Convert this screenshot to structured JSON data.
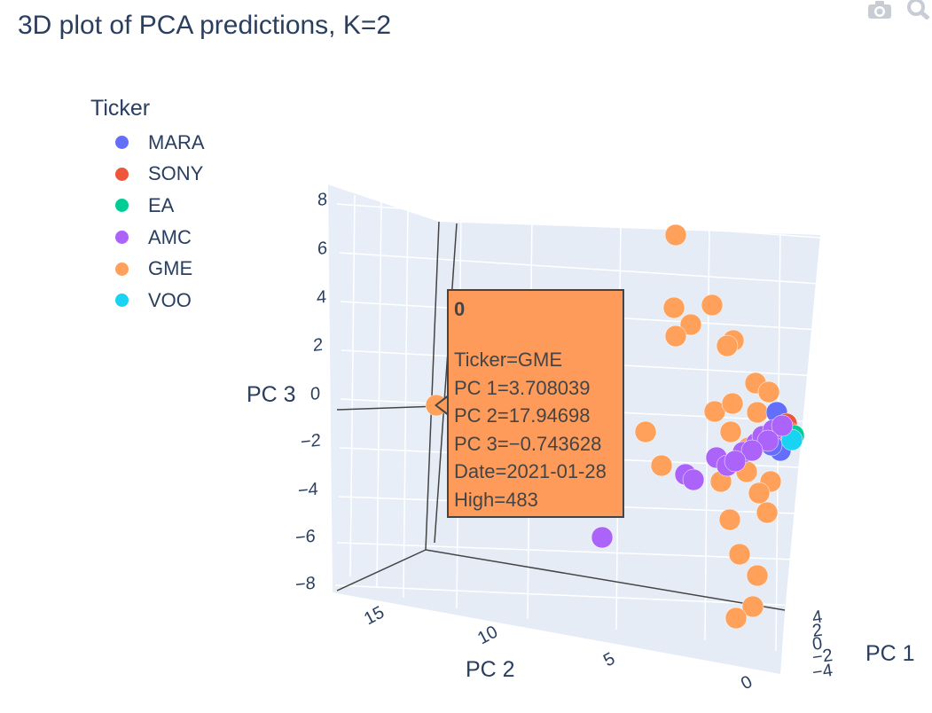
{
  "title": "3D plot of PCA predictions, K=2",
  "toolbar": {
    "icons": [
      "camera-icon",
      "zoom-icon"
    ]
  },
  "legend": {
    "title": "Ticker",
    "items": [
      {
        "label": "MARA",
        "color": "#636efa"
      },
      {
        "label": "SONY",
        "color": "#EF553B"
      },
      {
        "label": "EA",
        "color": "#00cc96"
      },
      {
        "label": "AMC",
        "color": "#ab63fa"
      },
      {
        "label": "GME",
        "color": "#FFA15A"
      },
      {
        "label": "VOO",
        "color": "#19d3f3"
      }
    ]
  },
  "hover": {
    "title": "0",
    "lines": [
      "Ticker=GME",
      "PC 1=3.708039",
      "PC 2=17.94698",
      "PC 3=−0.743628",
      "Date=2021-01-28",
      "High=483"
    ]
  },
  "chart_data": {
    "type": "scatter",
    "title": "3D plot of PCA predictions, K=2",
    "legend_title": "Ticker",
    "legend_placement": "top-left",
    "axes": {
      "x": {
        "label": "PC 1",
        "ticks": [
          "4",
          "2",
          "0",
          "−2",
          "−4"
        ]
      },
      "y": {
        "label": "PC 2",
        "ticks": [
          "15",
          "10",
          "5",
          "0"
        ]
      },
      "z": {
        "label": "PC 3",
        "ticks": [
          "8",
          "6",
          "4",
          "2",
          "0",
          "−2",
          "−4",
          "−6",
          "−8"
        ]
      }
    },
    "grid": true,
    "hovered_point": {
      "ticker": "GME",
      "pc1": 3.708039,
      "pc2": 17.94698,
      "pc3": -0.743628,
      "date": "2021-01-28",
      "high": 483
    }
  }
}
